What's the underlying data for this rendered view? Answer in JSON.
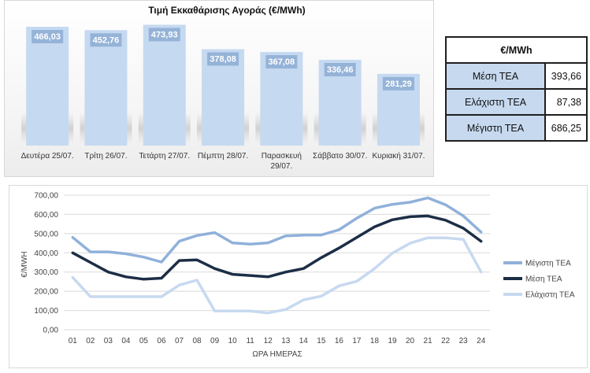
{
  "bar_chart": {
    "title": "Τιμή Εκκαθάρισης Αγοράς (€/MWh)",
    "categories": [
      [
        "Δευτέρα 25/07."
      ],
      [
        "Τρίτη 26/07."
      ],
      [
        "Τετάρτη 27/07."
      ],
      [
        "Πέμπτη 28/07."
      ],
      [
        "Παρασκευή",
        "29/07."
      ],
      [
        "Σάββατο 30/07."
      ],
      [
        "Κυριακή 31/07."
      ]
    ],
    "labels": [
      "466,03",
      "452,76",
      "473,93",
      "378,08",
      "367,08",
      "336,46",
      "281,29"
    ],
    "values": [
      466.03,
      452.76,
      473.93,
      378.08,
      367.08,
      336.46,
      281.29
    ],
    "bar_color": "#c5d9f1",
    "label_bg": "#95b3d7"
  },
  "stats_table": {
    "header": "€/MWh",
    "rows": [
      {
        "label": "Μέση ΤΕΑ",
        "value": "393,66"
      },
      {
        "label": "Ελάχιστη ΤΕΑ",
        "value": "87,38"
      },
      {
        "label": "Μέγιστη ΤΕΑ",
        "value": "686,25"
      }
    ]
  },
  "chart_data": {
    "type": "line",
    "x": [
      "01",
      "02",
      "03",
      "04",
      "05",
      "06",
      "07",
      "08",
      "09",
      "10",
      "11",
      "12",
      "13",
      "14",
      "15",
      "16",
      "17",
      "18",
      "19",
      "20",
      "21",
      "22",
      "23",
      "24"
    ],
    "xlabel": "ΩΡΑ ΗΜΕΡΑΣ",
    "ylabel": "€/MWH",
    "ylim": [
      0,
      700
    ],
    "yticks": [
      "0,00",
      "100,00",
      "200,00",
      "300,00",
      "400,00",
      "500,00",
      "600,00",
      "700,00"
    ],
    "grid": true,
    "legend": "right",
    "series": [
      {
        "name": "Μέγιστη ΤΕΑ",
        "color": "#8fb1da",
        "values": [
          480,
          405,
          405,
          395,
          378,
          352,
          460,
          490,
          505,
          452,
          445,
          452,
          488,
          492,
          493,
          520,
          580,
          632,
          652,
          663,
          686,
          650,
          592,
          508
        ]
      },
      {
        "name": "Μέση ΤΕΑ",
        "color": "#1c2e46",
        "values": [
          400,
          350,
          300,
          275,
          263,
          268,
          360,
          363,
          318,
          288,
          282,
          275,
          300,
          318,
          375,
          425,
          480,
          535,
          572,
          588,
          592,
          570,
          528,
          460
        ]
      },
      {
        "name": "Ελάχιστη ΤΕΑ",
        "color": "#c7d9f0",
        "values": [
          272,
          172,
          172,
          172,
          172,
          172,
          232,
          258,
          97,
          97,
          97,
          87,
          105,
          155,
          175,
          228,
          252,
          318,
          398,
          450,
          478,
          478,
          470,
          300
        ]
      }
    ]
  }
}
